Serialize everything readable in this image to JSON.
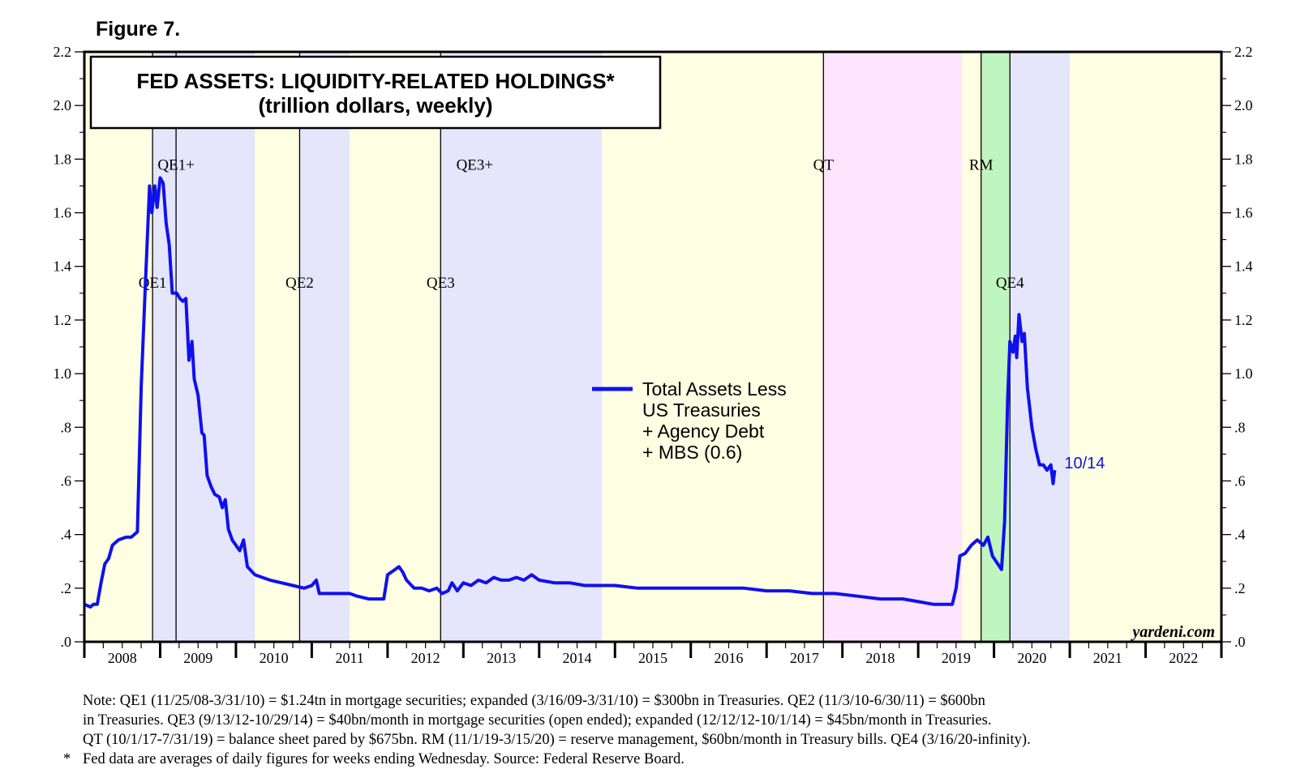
{
  "figure_label": "Figure 7.",
  "colors": {
    "series": "#1010ee",
    "band_yellow": "#fefee3",
    "band_lavender": "#e5e5fb",
    "band_pink": "#fde5fd",
    "band_green": "#bff5bf"
  },
  "chart_data": {
    "type": "line",
    "title": "FED ASSETS: LIQUIDITY-RELATED HOLDINGS*",
    "subtitle": "(trillion dollars, weekly)",
    "ylim": [
      0,
      2.2
    ],
    "y_ticks": [
      0,
      0.2,
      0.4,
      0.6,
      0.8,
      1.0,
      1.2,
      1.4,
      1.6,
      1.8,
      2.0,
      2.2
    ],
    "y_tick_labels": [
      ".0",
      ".2",
      ".4",
      ".6",
      ".8",
      "1.0",
      "1.2",
      "1.4",
      "1.6",
      "1.8",
      "2.0",
      "2.2"
    ],
    "xlim": [
      2008.0,
      2023.0
    ],
    "years": [
      "2008",
      "2009",
      "2010",
      "2011",
      "2012",
      "2013",
      "2014",
      "2015",
      "2016",
      "2017",
      "2018",
      "2019",
      "2020",
      "2021",
      "2022"
    ],
    "bands": [
      {
        "start": 2008.0,
        "end": 2008.9,
        "color": "yellow"
      },
      {
        "start": 2008.9,
        "end": 2010.25,
        "color": "lavender"
      },
      {
        "start": 2010.25,
        "end": 2010.84,
        "color": "yellow"
      },
      {
        "start": 2010.84,
        "end": 2011.5,
        "color": "lavender"
      },
      {
        "start": 2011.5,
        "end": 2012.7,
        "color": "yellow"
      },
      {
        "start": 2012.7,
        "end": 2014.83,
        "color": "lavender"
      },
      {
        "start": 2014.83,
        "end": 2017.75,
        "color": "yellow"
      },
      {
        "start": 2017.75,
        "end": 2019.58,
        "color": "pink"
      },
      {
        "start": 2019.58,
        "end": 2019.83,
        "color": "yellow"
      },
      {
        "start": 2019.83,
        "end": 2020.21,
        "color": "green"
      },
      {
        "start": 2020.21,
        "end": 2021.0,
        "color": "lavender"
      },
      {
        "start": 2021.0,
        "end": 2023.0,
        "color": "yellow"
      }
    ],
    "event_lines": [
      2008.9,
      2009.21,
      2010.84,
      2012.7,
      2017.75,
      2019.83,
      2020.21
    ],
    "annotations": [
      {
        "text": "QE1+",
        "x": 2009.21,
        "y": 1.76
      },
      {
        "text": "QE3+",
        "x": 2013.15,
        "y": 1.76
      },
      {
        "text": "QT",
        "x": 2017.75,
        "y": 1.76
      },
      {
        "text": "RM",
        "x": 2019.83,
        "y": 1.76
      },
      {
        "text": "QE1",
        "x": 2008.9,
        "y": 1.32
      },
      {
        "text": "QE2",
        "x": 2010.84,
        "y": 1.32
      },
      {
        "text": "QE3",
        "x": 2012.7,
        "y": 1.32
      },
      {
        "text": "QE4",
        "x": 2020.21,
        "y": 1.32
      }
    ],
    "series": [
      {
        "name": "Total Assets Less US Treasuries + Agency Debt + MBS (0.6)",
        "legend_lines": [
          "Total Assets Less",
          "US Treasuries",
          "+ Agency Debt",
          "+ MBS (0.6)"
        ],
        "end_label": "10/14",
        "points": [
          [
            2008.0,
            0.14
          ],
          [
            2008.08,
            0.13
          ],
          [
            2008.12,
            0.14
          ],
          [
            2008.17,
            0.14
          ],
          [
            2008.22,
            0.22
          ],
          [
            2008.27,
            0.29
          ],
          [
            2008.32,
            0.31
          ],
          [
            2008.37,
            0.36
          ],
          [
            2008.45,
            0.38
          ],
          [
            2008.55,
            0.39
          ],
          [
            2008.62,
            0.39
          ],
          [
            2008.7,
            0.41
          ],
          [
            2008.75,
            0.95
          ],
          [
            2008.8,
            1.3
          ],
          [
            2008.86,
            1.7
          ],
          [
            2008.89,
            1.6
          ],
          [
            2008.93,
            1.7
          ],
          [
            2008.96,
            1.62
          ],
          [
            2009.0,
            1.73
          ],
          [
            2009.04,
            1.71
          ],
          [
            2009.08,
            1.56
          ],
          [
            2009.12,
            1.48
          ],
          [
            2009.16,
            1.3
          ],
          [
            2009.22,
            1.3
          ],
          [
            2009.26,
            1.28
          ],
          [
            2009.3,
            1.27
          ],
          [
            2009.34,
            1.28
          ],
          [
            2009.38,
            1.05
          ],
          [
            2009.42,
            1.12
          ],
          [
            2009.45,
            0.98
          ],
          [
            2009.5,
            0.92
          ],
          [
            2009.55,
            0.78
          ],
          [
            2009.58,
            0.77
          ],
          [
            2009.62,
            0.62
          ],
          [
            2009.67,
            0.58
          ],
          [
            2009.72,
            0.55
          ],
          [
            2009.78,
            0.54
          ],
          [
            2009.82,
            0.5
          ],
          [
            2009.86,
            0.53
          ],
          [
            2009.9,
            0.42
          ],
          [
            2009.95,
            0.38
          ],
          [
            2010.0,
            0.36
          ],
          [
            2010.05,
            0.34
          ],
          [
            2010.1,
            0.38
          ],
          [
            2010.15,
            0.28
          ],
          [
            2010.25,
            0.25
          ],
          [
            2010.35,
            0.24
          ],
          [
            2010.45,
            0.23
          ],
          [
            2010.6,
            0.22
          ],
          [
            2010.75,
            0.21
          ],
          [
            2010.9,
            0.2
          ],
          [
            2011.0,
            0.21
          ],
          [
            2011.06,
            0.23
          ],
          [
            2011.1,
            0.18
          ],
          [
            2011.2,
            0.18
          ],
          [
            2011.35,
            0.18
          ],
          [
            2011.5,
            0.18
          ],
          [
            2011.6,
            0.17
          ],
          [
            2011.75,
            0.16
          ],
          [
            2011.9,
            0.16
          ],
          [
            2011.95,
            0.16
          ],
          [
            2012.0,
            0.25
          ],
          [
            2012.1,
            0.27
          ],
          [
            2012.15,
            0.28
          ],
          [
            2012.2,
            0.26
          ],
          [
            2012.25,
            0.23
          ],
          [
            2012.35,
            0.2
          ],
          [
            2012.45,
            0.2
          ],
          [
            2012.55,
            0.19
          ],
          [
            2012.65,
            0.2
          ],
          [
            2012.72,
            0.18
          ],
          [
            2012.8,
            0.19
          ],
          [
            2012.85,
            0.22
          ],
          [
            2012.92,
            0.19
          ],
          [
            2013.0,
            0.22
          ],
          [
            2013.1,
            0.21
          ],
          [
            2013.2,
            0.23
          ],
          [
            2013.3,
            0.22
          ],
          [
            2013.4,
            0.24
          ],
          [
            2013.5,
            0.23
          ],
          [
            2013.6,
            0.23
          ],
          [
            2013.7,
            0.24
          ],
          [
            2013.8,
            0.23
          ],
          [
            2013.9,
            0.25
          ],
          [
            2014.0,
            0.23
          ],
          [
            2014.2,
            0.22
          ],
          [
            2014.4,
            0.22
          ],
          [
            2014.6,
            0.21
          ],
          [
            2014.83,
            0.21
          ],
          [
            2015.0,
            0.21
          ],
          [
            2015.3,
            0.2
          ],
          [
            2015.6,
            0.2
          ],
          [
            2015.9,
            0.2
          ],
          [
            2016.1,
            0.2
          ],
          [
            2016.4,
            0.2
          ],
          [
            2016.7,
            0.2
          ],
          [
            2017.0,
            0.19
          ],
          [
            2017.3,
            0.19
          ],
          [
            2017.6,
            0.18
          ],
          [
            2017.9,
            0.18
          ],
          [
            2018.2,
            0.17
          ],
          [
            2018.5,
            0.16
          ],
          [
            2018.8,
            0.16
          ],
          [
            2019.0,
            0.15
          ],
          [
            2019.2,
            0.14
          ],
          [
            2019.35,
            0.14
          ],
          [
            2019.45,
            0.14
          ],
          [
            2019.5,
            0.2
          ],
          [
            2019.55,
            0.32
          ],
          [
            2019.62,
            0.33
          ],
          [
            2019.7,
            0.36
          ],
          [
            2019.78,
            0.38
          ],
          [
            2019.86,
            0.36
          ],
          [
            2019.92,
            0.39
          ],
          [
            2019.98,
            0.32
          ],
          [
            2020.05,
            0.29
          ],
          [
            2020.1,
            0.27
          ],
          [
            2020.14,
            0.45
          ],
          [
            2020.18,
            0.9
          ],
          [
            2020.21,
            1.12
          ],
          [
            2020.25,
            1.08
          ],
          [
            2020.28,
            1.14
          ],
          [
            2020.3,
            1.06
          ],
          [
            2020.33,
            1.22
          ],
          [
            2020.37,
            1.12
          ],
          [
            2020.4,
            1.15
          ],
          [
            2020.44,
            0.95
          ],
          [
            2020.5,
            0.8
          ],
          [
            2020.55,
            0.72
          ],
          [
            2020.6,
            0.66
          ],
          [
            2020.65,
            0.66
          ],
          [
            2020.7,
            0.64
          ],
          [
            2020.75,
            0.66
          ],
          [
            2020.78,
            0.59
          ],
          [
            2020.8,
            0.64
          ]
        ]
      }
    ],
    "legend_position": "center",
    "source_tag": "yardeni.com"
  },
  "notes": {
    "lines": [
      "Note: QE1 (11/25/08-3/31/10) = $1.24tn in mortgage securities; expanded (3/16/09-3/31/10) = $300bn in Treasuries. QE2 (11/3/10-6/30/11) = $600bn",
      "in Treasuries. QE3 (9/13/12-10/29/14) = $40bn/month in mortgage securities (open ended); expanded (12/12/12-10/1/14) = $45bn/month in Treasuries.",
      "QT (10/1/17-7/31/19) = balance sheet pared by $675bn. RM (11/1/19-3/15/20) = reserve management, $60bn/month in Treasury bills. QE4 (3/16/20-infinity).",
      "Fed data are averages of daily figures for weeks ending Wednesday. Source: Federal Reserve Board."
    ],
    "footnote_marker": "*"
  }
}
